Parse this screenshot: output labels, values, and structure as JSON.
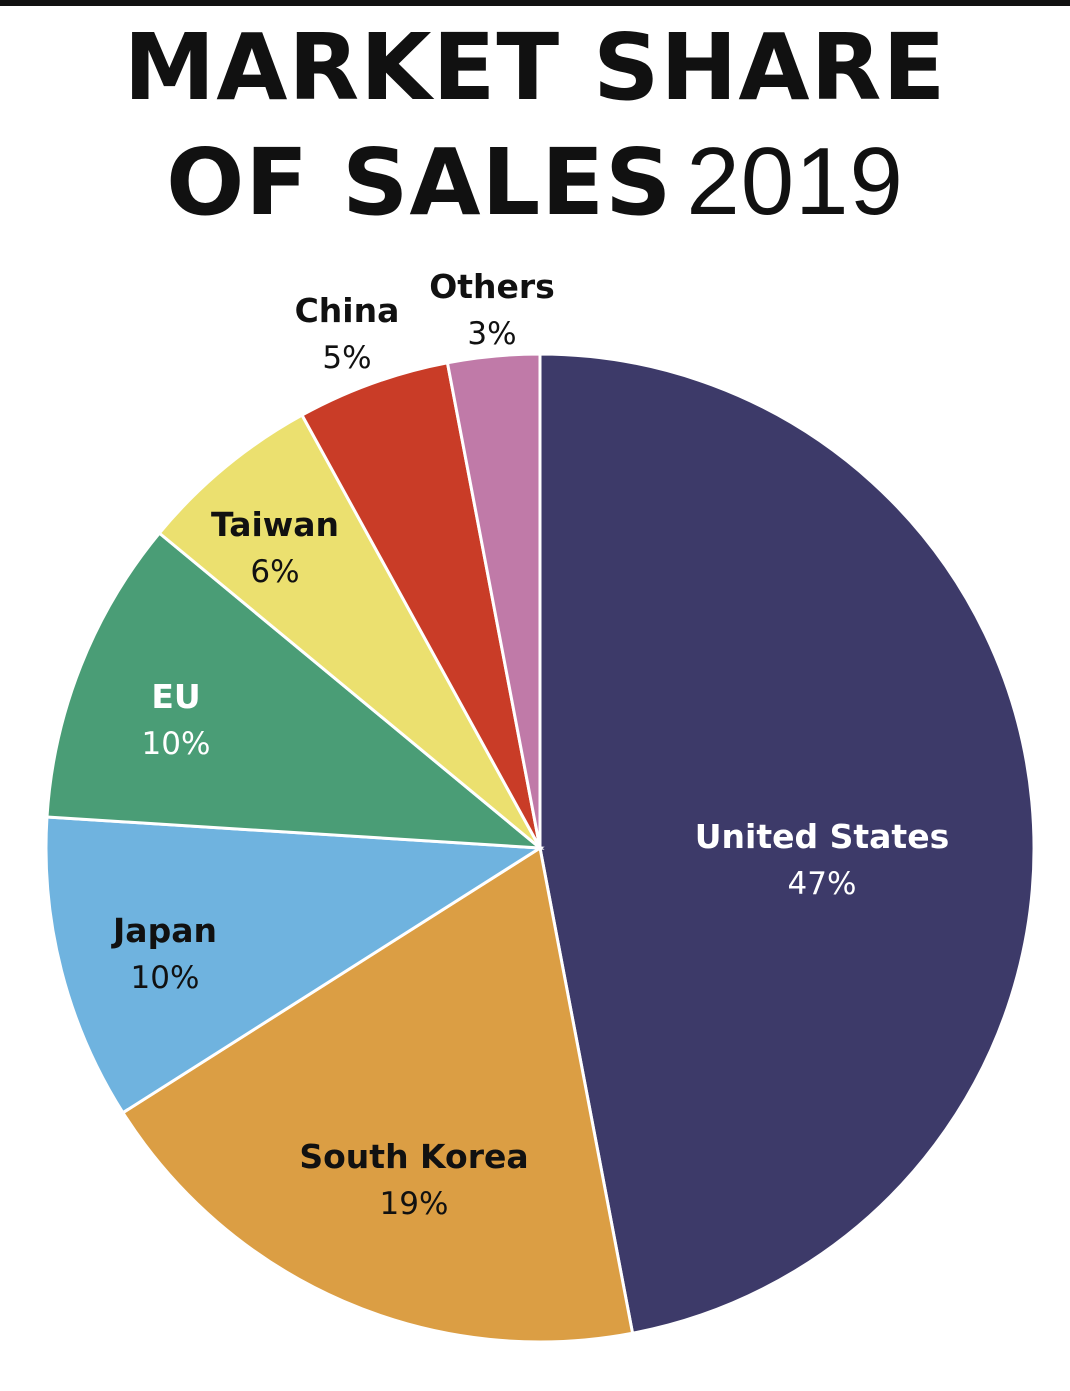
{
  "title": {
    "line1": "MARKET SHARE",
    "line2": "OF SALES",
    "year": "2019"
  },
  "chart_data": {
    "type": "pie",
    "slices": [
      {
        "label": "United States",
        "value_label": "47%",
        "value": 47,
        "color": "#3d3a69",
        "text_color": "#ffffff"
      },
      {
        "label": "South Korea",
        "value_label": "19%",
        "value": 19,
        "color": "#db9e44",
        "text_color": "#111111"
      },
      {
        "label": "Japan",
        "value_label": "10%",
        "value": 10,
        "color": "#6fb3df",
        "text_color": "#111111"
      },
      {
        "label": "EU",
        "value_label": "10%",
        "value": 10,
        "color": "#4a9d76",
        "text_color": "#ffffff"
      },
      {
        "label": "Taiwan",
        "value_label": "6%",
        "value": 6,
        "color": "#ebe06f",
        "text_color": "#111111"
      },
      {
        "label": "China",
        "value_label": "5%",
        "value": 5,
        "color": "#c93c27",
        "text_color": "#111111"
      },
      {
        "label": "Others",
        "value_label": "3%",
        "value": 3,
        "color": "#c07aa8",
        "text_color": "#111111"
      }
    ],
    "start": "12 o'clock",
    "direction": "clockwise"
  }
}
